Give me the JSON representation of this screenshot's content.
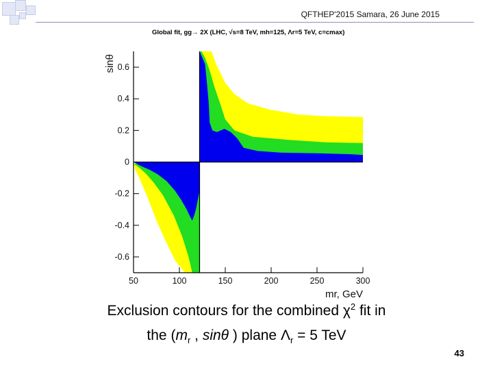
{
  "header": {
    "conference": "QFTHEP'2015 Samara,  26 June 2015"
  },
  "colors": {
    "blue": "#0000ee",
    "green": "#22dd22",
    "yellow": "#ffff00",
    "axis": "#000000"
  },
  "chart_data": {
    "type": "area",
    "title": "Global fit, gg→ 2X (LHC, √s=8 TeV, mh=125, Λr=5 TeV, c=cmax)",
    "xlabel": "mr, GeV",
    "ylabel": "sinθ",
    "xlim": [
      50,
      300
    ],
    "ylim": [
      -0.7,
      0.7
    ],
    "x_ticks": [
      "50",
      "100",
      "150",
      "200",
      "250",
      "300"
    ],
    "y_ticks": [
      "-0.6",
      "-0.4",
      "-0.2",
      "0",
      "0.2",
      "0.4",
      "0.6"
    ],
    "x_tick_values": [
      50,
      100,
      150,
      200,
      250,
      300
    ],
    "y_tick_values": [
      -0.6,
      -0.4,
      -0.2,
      0,
      0.2,
      0.4,
      0.6
    ],
    "grid": false,
    "regions": [
      {
        "color_key": "yellow",
        "points": [
          [
            122,
            0.7
          ],
          [
            135,
            0.7
          ],
          [
            140,
            0.62
          ],
          [
            150,
            0.5
          ],
          [
            160,
            0.43
          ],
          [
            175,
            0.37
          ],
          [
            200,
            0.33
          ],
          [
            230,
            0.3
          ],
          [
            260,
            0.29
          ],
          [
            300,
            0.285
          ],
          [
            300,
            0.06
          ],
          [
            240,
            0.05
          ],
          [
            170,
            0.04
          ],
          [
            150,
            0.06
          ],
          [
            135,
            0.1
          ],
          [
            125,
            0.18
          ],
          [
            122,
            0.3
          ]
        ]
      },
      {
        "color_key": "green",
        "points": [
          [
            122,
            0.7
          ],
          [
            124,
            0.7
          ],
          [
            128,
            0.66
          ],
          [
            133,
            0.58
          ],
          [
            138,
            0.48
          ],
          [
            142,
            0.41
          ],
          [
            145,
            0.36
          ],
          [
            150,
            0.27
          ],
          [
            160,
            0.2
          ],
          [
            180,
            0.16
          ],
          [
            220,
            0.14
          ],
          [
            260,
            0.125
          ],
          [
            300,
            0.12
          ],
          [
            300,
            0.03
          ],
          [
            250,
            0.04
          ],
          [
            200,
            0.04
          ],
          [
            170,
            0.035
          ],
          [
            150,
            0.04
          ],
          [
            135,
            0.07
          ],
          [
            125,
            0.12
          ],
          [
            122,
            0.3
          ]
        ]
      },
      {
        "color_key": "blue",
        "points": [
          [
            122,
            0.7
          ],
          [
            128,
            0.62
          ],
          [
            130,
            0.5
          ],
          [
            132,
            0.37
          ],
          [
            133,
            0.25
          ],
          [
            136,
            0.2
          ],
          [
            141,
            0.19
          ],
          [
            149,
            0.21
          ],
          [
            156,
            0.19
          ],
          [
            163,
            0.15
          ],
          [
            170,
            0.09
          ],
          [
            185,
            0.07
          ],
          [
            210,
            0.06
          ],
          [
            250,
            0.055
          ],
          [
            285,
            0.05
          ],
          [
            300,
            0.045
          ],
          [
            300,
            0
          ],
          [
            122,
            0
          ]
        ]
      },
      {
        "color_key": "yellow",
        "points": [
          [
            50,
            -0.01
          ],
          [
            80,
            -0.01
          ],
          [
            122,
            -0.01
          ],
          [
            122,
            -0.7
          ],
          [
            106,
            -0.7
          ],
          [
            95,
            -0.62
          ],
          [
            85,
            -0.5
          ],
          [
            75,
            -0.37
          ],
          [
            65,
            -0.22
          ],
          [
            57,
            -0.11
          ],
          [
            52,
            -0.05
          ]
        ]
      },
      {
        "color_key": "green",
        "points": [
          [
            50,
            -0.01
          ],
          [
            122,
            -0.01
          ],
          [
            122,
            -0.7
          ],
          [
            114,
            -0.7
          ],
          [
            110,
            -0.6
          ],
          [
            103,
            -0.47
          ],
          [
            94,
            -0.34
          ],
          [
            82,
            -0.21
          ],
          [
            72,
            -0.13
          ],
          [
            63,
            -0.07
          ],
          [
            55,
            -0.03
          ]
        ]
      },
      {
        "color_key": "blue",
        "points": [
          [
            50,
            0
          ],
          [
            122,
            0
          ],
          [
            122,
            -0.18
          ],
          [
            120,
            -0.24
          ],
          [
            118,
            -0.3
          ],
          [
            116,
            -0.34
          ],
          [
            114,
            -0.37
          ],
          [
            112,
            -0.35
          ],
          [
            108,
            -0.3
          ],
          [
            102,
            -0.24
          ],
          [
            95,
            -0.18
          ],
          [
            86,
            -0.12
          ],
          [
            77,
            -0.08
          ],
          [
            68,
            -0.05
          ],
          [
            58,
            -0.025
          ]
        ]
      }
    ]
  },
  "caption": {
    "line1_text": "Exclusion contours for the combined χ",
    "line1_sup": "2",
    "line1_end": " fit in",
    "line2_a": "the (",
    "line2_m": "m",
    "line2_sub1": "r",
    "line2_b": " , ",
    "line2_sin": "sinθ",
    "line2_c": " ) plane Λ",
    "line2_sub2": "r",
    "line2_d": "  = 5 TeV"
  },
  "page_number": "43"
}
